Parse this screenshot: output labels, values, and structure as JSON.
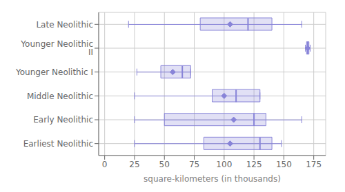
{
  "chart_data": {
    "type": "boxplot",
    "xlabel": "square-kilometers (in thousands)",
    "categories": [
      "Earliest Neolithic",
      "Early Neolithic",
      "Middle Neolithic",
      "Younger Neolithic I",
      "Younger Neolithic II",
      "Late Neolithic"
    ],
    "stats": [
      {
        "whislo": 25,
        "q1": 83,
        "med": 130,
        "mean": 105,
        "q3": 140,
        "whishi": 148
      },
      {
        "whislo": 25,
        "q1": 50,
        "med": 125,
        "mean": 108,
        "q3": 135,
        "whishi": 165
      },
      {
        "whislo": 25,
        "q1": 90,
        "med": 110,
        "mean": 100,
        "q3": 130,
        "whishi": 130
      },
      {
        "whislo": 27,
        "q1": 47,
        "med": 65,
        "mean": 57,
        "q3": 72,
        "whishi": 72
      },
      {
        "whislo": 168,
        "q1": 169,
        "med": 170,
        "mean": 170,
        "q3": 171,
        "whishi": 172
      },
      {
        "whislo": 20,
        "q1": 80,
        "med": 120,
        "mean": 105,
        "q3": 140,
        "whishi": 165
      }
    ],
    "xlim": [
      -5,
      185
    ],
    "xticks": [
      0,
      25,
      50,
      75,
      100,
      125,
      150,
      175
    ],
    "grid": true,
    "color": "#8884d8"
  }
}
